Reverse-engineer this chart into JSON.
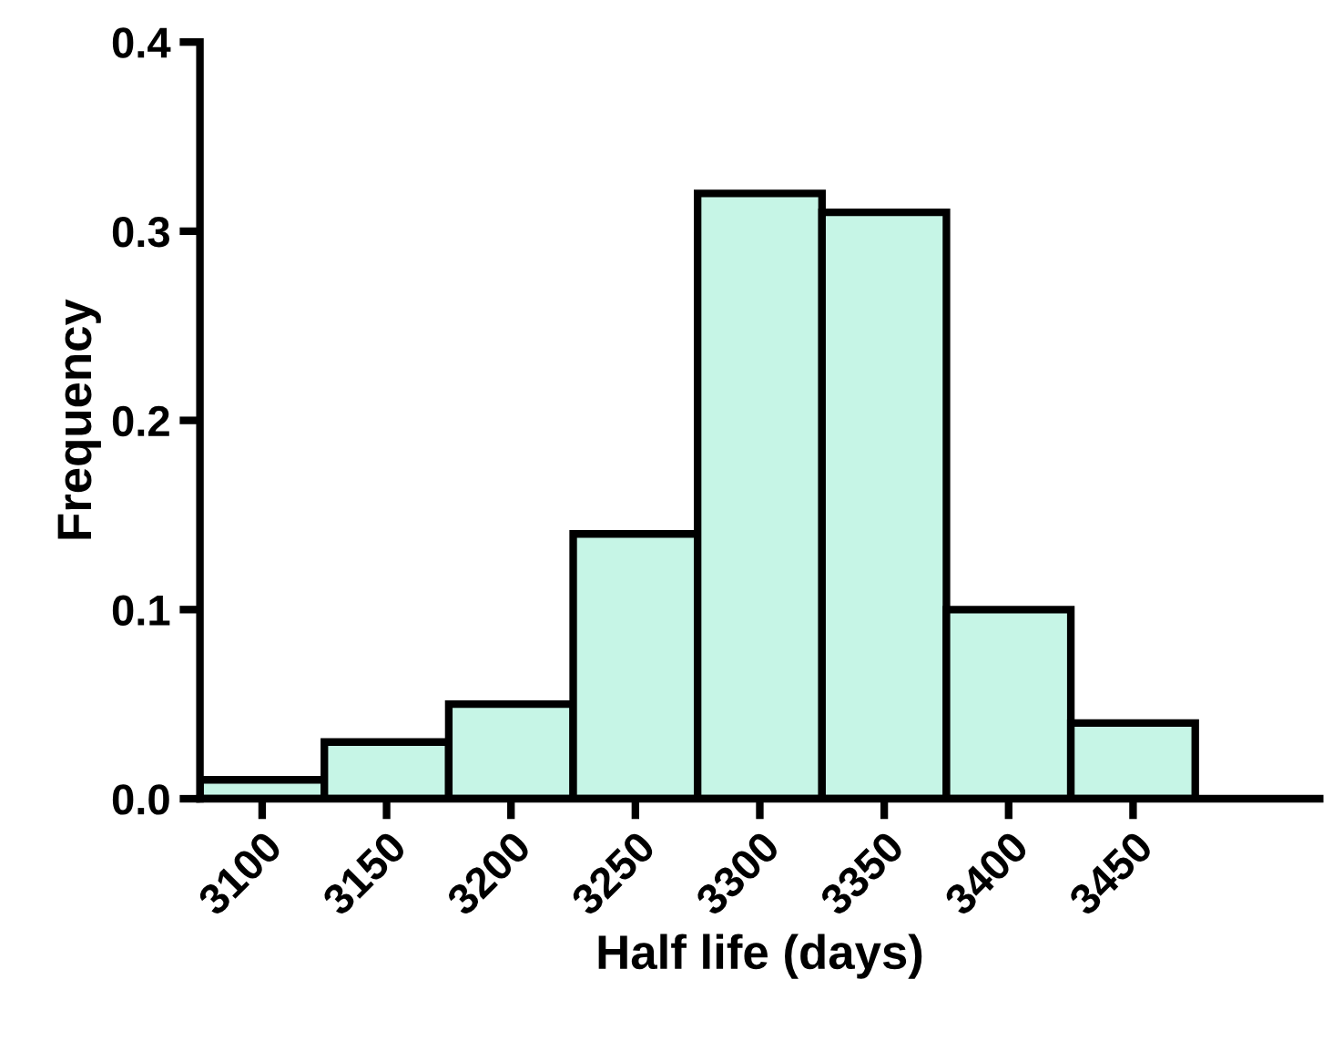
{
  "chart_data": {
    "type": "histogram",
    "xlabel": "Half life (days)",
    "ylabel": "Frequency",
    "bins": [
      3075,
      3125,
      3175,
      3225,
      3275,
      3325,
      3375,
      3425,
      3475
    ],
    "values": [
      0.01,
      0.03,
      0.05,
      0.14,
      0.32,
      0.31,
      0.1,
      0.04
    ],
    "color": "#c6f5e6",
    "xlim": [
      3075,
      3525
    ],
    "xticks": [
      3100,
      3150,
      3200,
      3250,
      3300,
      3350,
      3400,
      3450
    ],
    "ylim": [
      0,
      0.4
    ],
    "yticks": [
      {
        "value": 0,
        "label": "0.0"
      },
      0.1,
      0.2,
      0.3,
      0.4
    ],
    "grid": false,
    "legend": false
  }
}
